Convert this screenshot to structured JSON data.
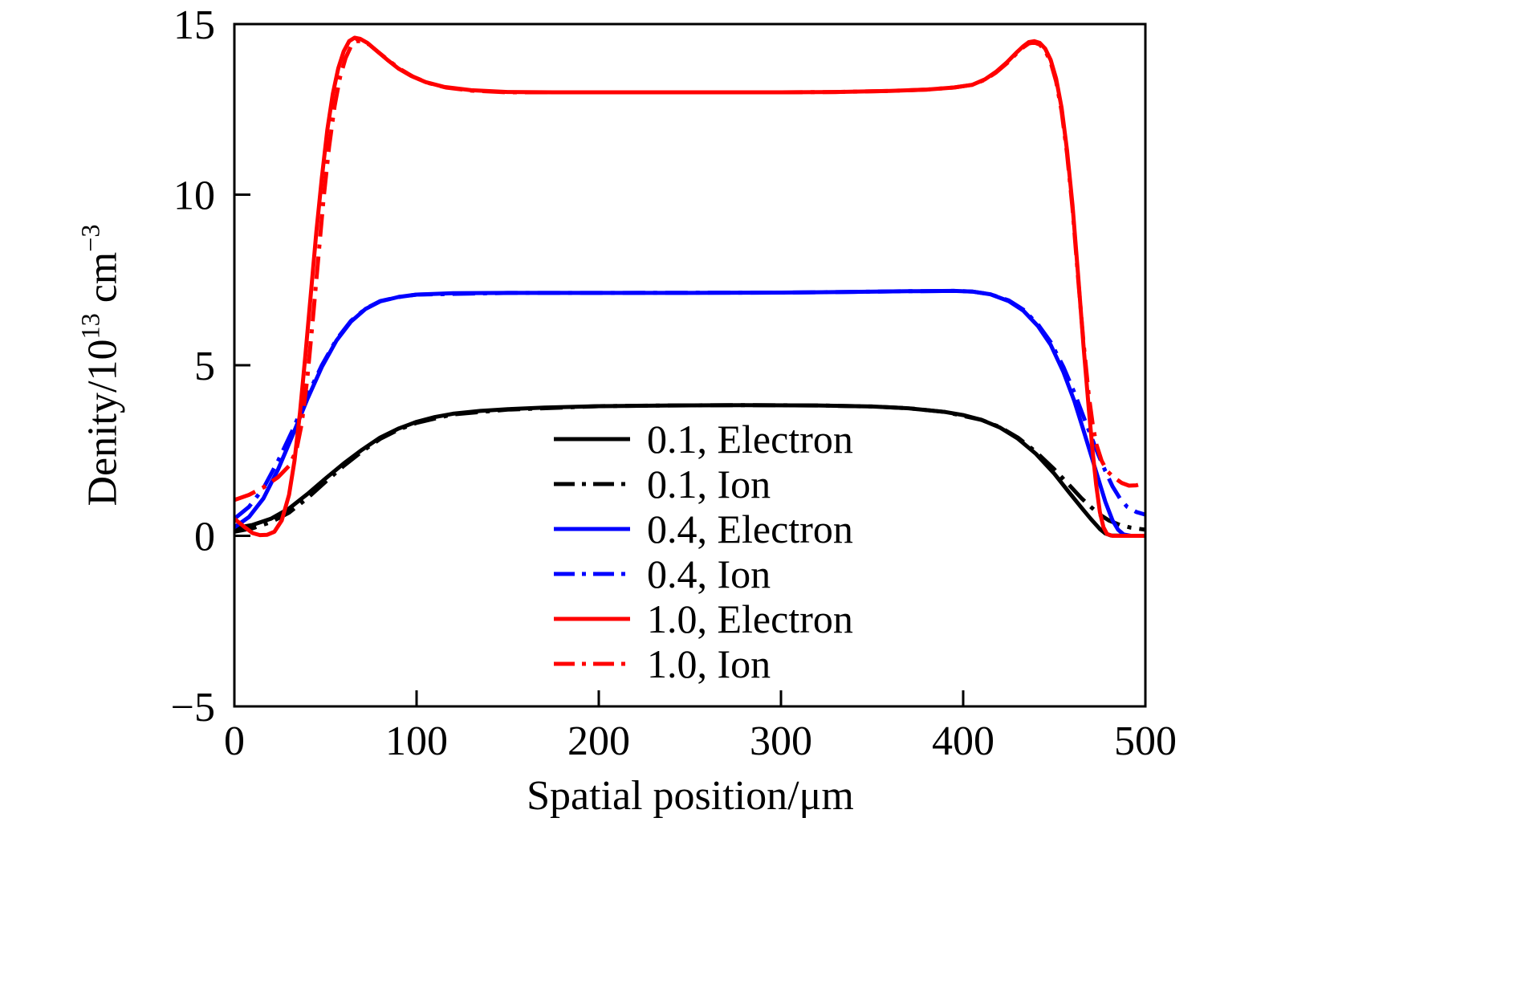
{
  "figure": {
    "background": "#ffffff",
    "frame_color": "#000000"
  },
  "chart_data": {
    "type": "line",
    "title": "",
    "xlabel": "Spatial position/μm",
    "ylabel": "Denity/10^13 cm^-3",
    "ylabel_parts": {
      "base": "Denity/10",
      "exponent": "13",
      "unit": " cm",
      "unit_exponent": "−3"
    },
    "xlim": [
      0,
      500
    ],
    "ylim": [
      -5,
      15
    ],
    "grid": false,
    "legend_position": "inside center-bottom",
    "x_ticks": [
      {
        "value": 0,
        "label": "0"
      },
      {
        "value": 100,
        "label": "100"
      },
      {
        "value": 200,
        "label": "200"
      },
      {
        "value": 300,
        "label": "300"
      },
      {
        "value": 400,
        "label": "400"
      },
      {
        "value": 500,
        "label": "500"
      }
    ],
    "y_ticks": [
      {
        "value": -5,
        "label": "−5"
      },
      {
        "value": 0,
        "label": "0"
      },
      {
        "value": 5,
        "label": "5"
      },
      {
        "value": 10,
        "label": "10"
      },
      {
        "value": 15,
        "label": "15"
      }
    ],
    "series": [
      {
        "id": "0.1-electron",
        "name": "0.1, Electron",
        "color": "#000000",
        "style": "solid",
        "points": [
          [
            0,
            0.22
          ],
          [
            10,
            0.32
          ],
          [
            20,
            0.5
          ],
          [
            30,
            0.8
          ],
          [
            40,
            1.22
          ],
          [
            50,
            1.68
          ],
          [
            60,
            2.12
          ],
          [
            70,
            2.52
          ],
          [
            80,
            2.88
          ],
          [
            90,
            3.14
          ],
          [
            100,
            3.34
          ],
          [
            110,
            3.48
          ],
          [
            120,
            3.58
          ],
          [
            135,
            3.66
          ],
          [
            150,
            3.71
          ],
          [
            170,
            3.76
          ],
          [
            200,
            3.8
          ],
          [
            240,
            3.82
          ],
          [
            280,
            3.83
          ],
          [
            320,
            3.82
          ],
          [
            350,
            3.79
          ],
          [
            370,
            3.74
          ],
          [
            390,
            3.63
          ],
          [
            400,
            3.54
          ],
          [
            410,
            3.4
          ],
          [
            420,
            3.18
          ],
          [
            430,
            2.85
          ],
          [
            440,
            2.4
          ],
          [
            450,
            1.82
          ],
          [
            458,
            1.28
          ],
          [
            465,
            0.82
          ],
          [
            470,
            0.5
          ],
          [
            475,
            0.2
          ],
          [
            478,
            0.07
          ],
          [
            481,
            0.01
          ],
          [
            490,
            0
          ],
          [
            500,
            0
          ]
        ]
      },
      {
        "id": "0.1-ion",
        "name": "0.1, Ion",
        "color": "#000000",
        "style": "dashdot",
        "points": [
          [
            0,
            0.12
          ],
          [
            10,
            0.22
          ],
          [
            20,
            0.4
          ],
          [
            30,
            0.68
          ],
          [
            40,
            1.1
          ],
          [
            50,
            1.58
          ],
          [
            60,
            2.05
          ],
          [
            70,
            2.47
          ],
          [
            80,
            2.84
          ],
          [
            90,
            3.11
          ],
          [
            100,
            3.31
          ],
          [
            120,
            3.56
          ],
          [
            150,
            3.7
          ],
          [
            200,
            3.8
          ],
          [
            240,
            3.82
          ],
          [
            280,
            3.83
          ],
          [
            320,
            3.82
          ],
          [
            350,
            3.79
          ],
          [
            370,
            3.74
          ],
          [
            390,
            3.63
          ],
          [
            410,
            3.4
          ],
          [
            420,
            3.19
          ],
          [
            430,
            2.88
          ],
          [
            440,
            2.46
          ],
          [
            450,
            1.95
          ],
          [
            458,
            1.5
          ],
          [
            465,
            1.1
          ],
          [
            470,
            0.85
          ],
          [
            475,
            0.62
          ],
          [
            480,
            0.45
          ],
          [
            486,
            0.32
          ],
          [
            492,
            0.24
          ],
          [
            500,
            0.18
          ]
        ]
      },
      {
        "id": "0.4-electron",
        "name": "0.4, Electron",
        "color": "#0000ff",
        "style": "solid",
        "points": [
          [
            0,
            0.25
          ],
          [
            8,
            0.55
          ],
          [
            16,
            1.1
          ],
          [
            24,
            1.95
          ],
          [
            32,
            2.95
          ],
          [
            40,
            4.0
          ],
          [
            48,
            4.95
          ],
          [
            56,
            5.72
          ],
          [
            64,
            6.28
          ],
          [
            72,
            6.65
          ],
          [
            80,
            6.87
          ],
          [
            90,
            7.0
          ],
          [
            100,
            7.07
          ],
          [
            120,
            7.11
          ],
          [
            150,
            7.12
          ],
          [
            200,
            7.12
          ],
          [
            250,
            7.12
          ],
          [
            300,
            7.13
          ],
          [
            340,
            7.15
          ],
          [
            370,
            7.17
          ],
          [
            395,
            7.18
          ],
          [
            405,
            7.16
          ],
          [
            415,
            7.08
          ],
          [
            425,
            6.88
          ],
          [
            433,
            6.6
          ],
          [
            441,
            6.15
          ],
          [
            448,
            5.6
          ],
          [
            455,
            4.8
          ],
          [
            461,
            3.95
          ],
          [
            466,
            3.1
          ],
          [
            470,
            2.4
          ],
          [
            474,
            1.7
          ],
          [
            478,
            1.0
          ],
          [
            482,
            0.45
          ],
          [
            485,
            0.18
          ],
          [
            488,
            0.04
          ],
          [
            492,
            0
          ],
          [
            500,
            0
          ]
        ]
      },
      {
        "id": "0.4-ion",
        "name": "0.4, Ion",
        "color": "#0000ff",
        "style": "dashdot",
        "points": [
          [
            0,
            0.5
          ],
          [
            8,
            0.85
          ],
          [
            16,
            1.4
          ],
          [
            24,
            2.2
          ],
          [
            32,
            3.1
          ],
          [
            40,
            4.1
          ],
          [
            48,
            5.0
          ],
          [
            56,
            5.75
          ],
          [
            64,
            6.3
          ],
          [
            72,
            6.66
          ],
          [
            80,
            6.88
          ],
          [
            90,
            7.0
          ],
          [
            100,
            7.07
          ],
          [
            150,
            7.12
          ],
          [
            200,
            7.12
          ],
          [
            300,
            7.13
          ],
          [
            340,
            7.15
          ],
          [
            370,
            7.17
          ],
          [
            395,
            7.18
          ],
          [
            405,
            7.16
          ],
          [
            415,
            7.08
          ],
          [
            425,
            6.9
          ],
          [
            433,
            6.63
          ],
          [
            441,
            6.2
          ],
          [
            448,
            5.68
          ],
          [
            455,
            4.95
          ],
          [
            461,
            4.2
          ],
          [
            466,
            3.5
          ],
          [
            470,
            2.95
          ],
          [
            474,
            2.4
          ],
          [
            478,
            1.9
          ],
          [
            482,
            1.45
          ],
          [
            486,
            1.1
          ],
          [
            490,
            0.85
          ],
          [
            495,
            0.7
          ],
          [
            500,
            0.62
          ]
        ]
      },
      {
        "id": "1.0-electron",
        "name": "1.0, Electron",
        "color": "#ff0000",
        "style": "solid",
        "points": [
          [
            0,
            0.5
          ],
          [
            5,
            0.28
          ],
          [
            10,
            0.08
          ],
          [
            14,
            0.02
          ],
          [
            18,
            0.03
          ],
          [
            22,
            0.12
          ],
          [
            26,
            0.45
          ],
          [
            30,
            1.2
          ],
          [
            33,
            2.2
          ],
          [
            36,
            3.6
          ],
          [
            39,
            5.3
          ],
          [
            42,
            7.1
          ],
          [
            45,
            8.9
          ],
          [
            48,
            10.5
          ],
          [
            51,
            11.9
          ],
          [
            54,
            12.95
          ],
          [
            57,
            13.7
          ],
          [
            60,
            14.2
          ],
          [
            63,
            14.5
          ],
          [
            66,
            14.6
          ],
          [
            69,
            14.57
          ],
          [
            73,
            14.45
          ],
          [
            78,
            14.22
          ],
          [
            84,
            13.95
          ],
          [
            90,
            13.7
          ],
          [
            97,
            13.48
          ],
          [
            105,
            13.3
          ],
          [
            115,
            13.16
          ],
          [
            130,
            13.06
          ],
          [
            150,
            13.01
          ],
          [
            175,
            13.0
          ],
          [
            200,
            13.0
          ],
          [
            250,
            13.0
          ],
          [
            300,
            13.0
          ],
          [
            330,
            13.01
          ],
          [
            360,
            13.04
          ],
          [
            380,
            13.08
          ],
          [
            395,
            13.14
          ],
          [
            405,
            13.22
          ],
          [
            412,
            13.38
          ],
          [
            418,
            13.6
          ],
          [
            424,
            13.88
          ],
          [
            429,
            14.15
          ],
          [
            433,
            14.35
          ],
          [
            436,
            14.47
          ],
          [
            439,
            14.5
          ],
          [
            442,
            14.45
          ],
          [
            445,
            14.28
          ],
          [
            448,
            13.95
          ],
          [
            451,
            13.4
          ],
          [
            454,
            12.55
          ],
          [
            457,
            11.3
          ],
          [
            460,
            9.7
          ],
          [
            463,
            7.7
          ],
          [
            466,
            5.6
          ],
          [
            469,
            3.7
          ],
          [
            471,
            2.5
          ],
          [
            473,
            1.5
          ],
          [
            475,
            0.7
          ],
          [
            477,
            0.25
          ],
          [
            479,
            0.05
          ],
          [
            482,
            0
          ],
          [
            500,
            0
          ]
        ]
      },
      {
        "id": "1.0-ion",
        "name": "1.0, Ion",
        "color": "#ff0000",
        "style": "dashdot",
        "points": [
          [
            0,
            1.05
          ],
          [
            8,
            1.2
          ],
          [
            16,
            1.42
          ],
          [
            24,
            1.72
          ],
          [
            30,
            2.05
          ],
          [
            34,
            2.5
          ],
          [
            37,
            3.3
          ],
          [
            40,
            4.6
          ],
          [
            43,
            6.3
          ],
          [
            46,
            8.1
          ],
          [
            49,
            9.9
          ],
          [
            52,
            11.4
          ],
          [
            55,
            12.6
          ],
          [
            58,
            13.45
          ],
          [
            61,
            14.0
          ],
          [
            64,
            14.35
          ],
          [
            67,
            14.5
          ],
          [
            70,
            14.5
          ],
          [
            74,
            14.4
          ],
          [
            79,
            14.18
          ],
          [
            85,
            13.92
          ],
          [
            91,
            13.68
          ],
          [
            98,
            13.46
          ],
          [
            106,
            13.28
          ],
          [
            116,
            13.14
          ],
          [
            130,
            13.05
          ],
          [
            150,
            13.0
          ],
          [
            200,
            13.0
          ],
          [
            300,
            13.0
          ],
          [
            330,
            13.01
          ],
          [
            360,
            13.04
          ],
          [
            380,
            13.08
          ],
          [
            395,
            13.14
          ],
          [
            405,
            13.22
          ],
          [
            412,
            13.37
          ],
          [
            418,
            13.58
          ],
          [
            424,
            13.85
          ],
          [
            429,
            14.12
          ],
          [
            433,
            14.32
          ],
          [
            436,
            14.43
          ],
          [
            439,
            14.46
          ],
          [
            442,
            14.4
          ],
          [
            445,
            14.22
          ],
          [
            448,
            13.88
          ],
          [
            451,
            13.32
          ],
          [
            454,
            12.45
          ],
          [
            457,
            11.2
          ],
          [
            460,
            9.6
          ],
          [
            463,
            7.6
          ],
          [
            466,
            5.7
          ],
          [
            469,
            4.1
          ],
          [
            471,
            3.3
          ],
          [
            473,
            2.7
          ],
          [
            476,
            2.2
          ],
          [
            479,
            1.9
          ],
          [
            483,
            1.7
          ],
          [
            487,
            1.55
          ],
          [
            491,
            1.47
          ],
          [
            495,
            1.48
          ],
          [
            500,
            1.55
          ]
        ]
      }
    ]
  }
}
